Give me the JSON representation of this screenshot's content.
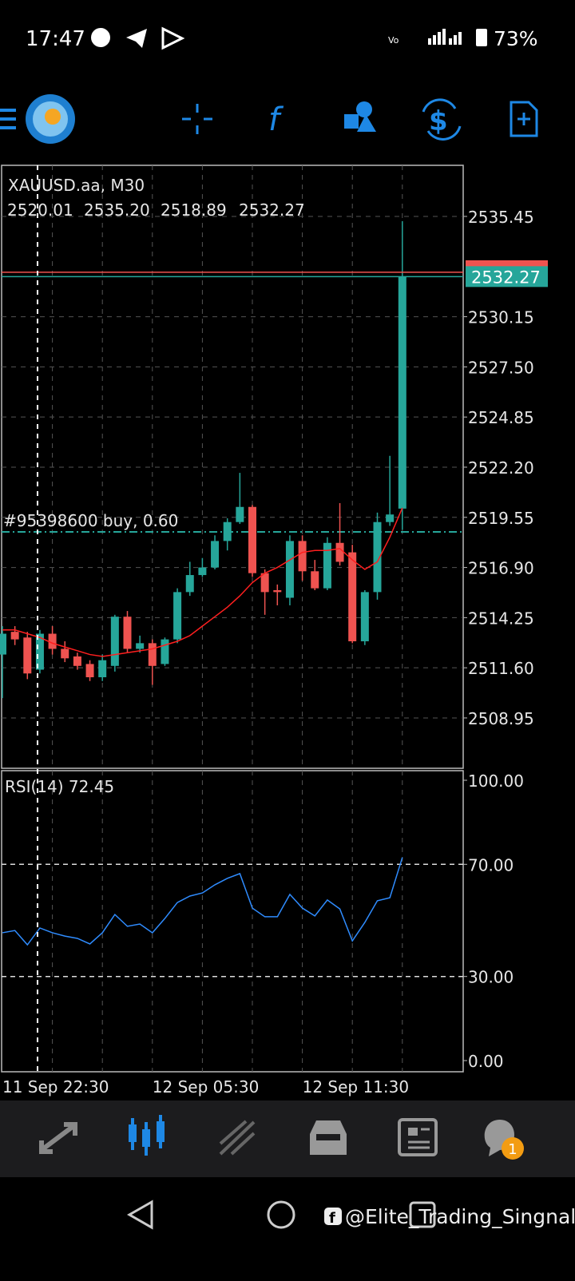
{
  "status_bar": {
    "time": "17:47",
    "battery": "73%"
  },
  "chart": {
    "type": "candlestick",
    "symbol": "XAUUSD.aa, M30",
    "ohlc_text": [
      "2520.01",
      "2535.20",
      "2518.89",
      "2532.27"
    ],
    "categories": [
      "11 Sep 22:30",
      null,
      null,
      null,
      null,
      null,
      null,
      null,
      null,
      null,
      null,
      null,
      "12 Sep 05:30",
      null,
      null,
      null,
      null,
      null,
      null,
      null,
      null,
      null,
      null,
      null,
      "12 Sep 11:30",
      null,
      null,
      null,
      null,
      null,
      null,
      null,
      null
    ],
    "open": [
      2512.3,
      2513.5,
      2513.2,
      2511.5,
      2513.4,
      2512.6,
      2512.2,
      2511.8,
      2511.1,
      2511.7,
      2514.3,
      2512.6,
      2512.9,
      2511.8,
      2513.1,
      2515.6,
      2516.5,
      2516.9,
      2518.3,
      2519.3,
      2520.1,
      2516.6,
      2515.7,
      2515.3,
      2518.3,
      2516.7,
      2515.8,
      2518.2,
      2517.7,
      2513.0,
      2515.6,
      2519.3,
      2520.01
    ],
    "high": [
      2513.8,
      2513.8,
      2513.5,
      2513.6,
      2513.8,
      2513.0,
      2512.4,
      2512.0,
      2512.3,
      2514.4,
      2514.6,
      2513.3,
      2513.1,
      2513.2,
      2515.8,
      2517.2,
      2517.4,
      2518.6,
      2519.5,
      2521.9,
      2520.2,
      2516.8,
      2516.0,
      2518.6,
      2518.6,
      2517.3,
      2518.5,
      2520.3,
      2518.1,
      2515.7,
      2519.8,
      2522.8,
      2535.2
    ],
    "low": [
      2510.0,
      2512.8,
      2511.0,
      2511.3,
      2512.3,
      2511.9,
      2511.5,
      2510.9,
      2510.9,
      2511.4,
      2512.4,
      2512.4,
      2510.7,
      2511.7,
      2512.9,
      2515.4,
      2516.4,
      2516.8,
      2517.8,
      2519.2,
      2516.4,
      2514.4,
      2514.9,
      2514.9,
      2516.2,
      2515.7,
      2515.7,
      2517.0,
      2512.9,
      2512.8,
      2515.2,
      2519.1,
      2518.89
    ],
    "close": [
      2513.4,
      2513.1,
      2511.3,
      2513.4,
      2512.6,
      2512.1,
      2511.7,
      2511.1,
      2512.0,
      2514.3,
      2512.6,
      2512.9,
      2511.7,
      2513.1,
      2515.6,
      2516.5,
      2516.9,
      2518.3,
      2519.3,
      2520.1,
      2516.6,
      2515.6,
      2515.6,
      2518.3,
      2516.7,
      2515.8,
      2518.2,
      2517.2,
      2513.0,
      2515.6,
      2519.3,
      2519.7,
      2532.27
    ],
    "up_color": "#26a69a",
    "down_color": "#ef5350",
    "ma": {
      "color": "#ff1f1f",
      "values": [
        2513.6,
        2513.6,
        2513.4,
        2513.2,
        2512.9,
        2512.7,
        2512.5,
        2512.3,
        2512.2,
        2512.3,
        2512.4,
        2512.5,
        2512.6,
        2512.8,
        2513.0,
        2513.3,
        2513.8,
        2514.3,
        2514.8,
        2515.4,
        2516.1,
        2516.6,
        2516.9,
        2517.3,
        2517.7,
        2517.8,
        2517.8,
        2517.9,
        2517.3,
        2516.8,
        2517.2,
        2518.5,
        2520.05
      ]
    },
    "ylim": [
      2506.29,
      2538.15
    ],
    "yticks": [
      2535.45,
      2530.15,
      {
        "value": 2527.5,
        "label": "2527.50"
      },
      2524.85,
      {
        "value": 2522.2,
        "label": "2522.20"
      },
      2519.55,
      {
        "value": 2516.9,
        "label": "2516.90"
      },
      2514.25,
      {
        "value": 2511.6,
        "label": "2511.60"
      },
      2508.95
    ],
    "grid": true,
    "bid_line": 2532.27,
    "ask_line": 2532.5,
    "order_line": {
      "value": 2518.78,
      "label": "#95398600 buy, 0.60"
    }
  },
  "rsi": {
    "label": "RSI(14) 72.45",
    "color": "#2f8cff",
    "values": [
      45.6,
      46.4,
      41.3,
      47.3,
      45.6,
      44.4,
      43.6,
      41.6,
      45.6,
      52.1,
      47.9,
      48.7,
      45.6,
      50.7,
      56.4,
      58.7,
      59.8,
      62.7,
      65.0,
      66.7,
      54.4,
      51.3,
      51.3,
      59.3,
      54.4,
      51.6,
      57.3,
      54.1,
      42.7,
      49.3,
      57.0,
      58.1,
      72.45
    ],
    "ylim": [
      0,
      100
    ],
    "yticks": [
      {
        "value": 100,
        "label": "100.00"
      },
      {
        "value": 70,
        "label": "70.00"
      },
      {
        "value": 30,
        "label": "30.00"
      },
      {
        "value": 0,
        "label": "0.00"
      }
    ],
    "dashed_levels": [
      70,
      30
    ]
  },
  "chat_badge": "1",
  "watermark": "@Elite_Trading_Singnal"
}
